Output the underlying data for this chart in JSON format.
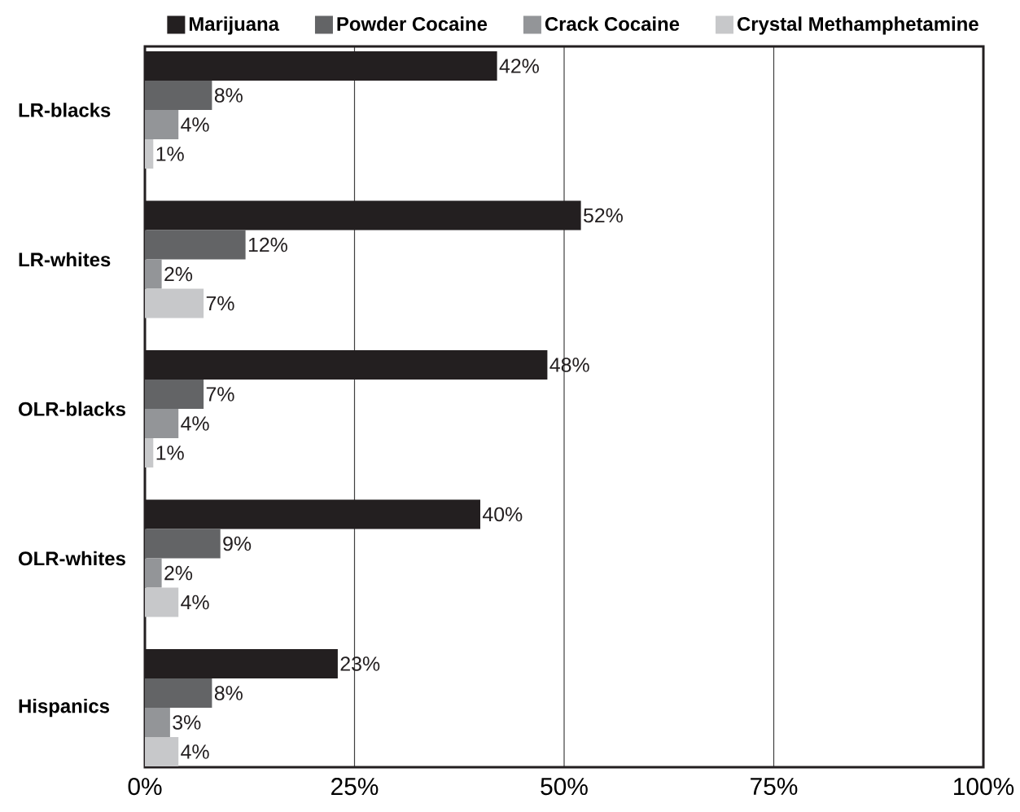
{
  "chart_data": {
    "type": "bar",
    "orientation": "horizontal",
    "categories": [
      "LR-blacks",
      "LR-whites",
      "OLR-blacks",
      "OLR-whites",
      "Hispanics"
    ],
    "series": [
      {
        "name": "Marijuana",
        "color": "#231f20",
        "values": [
          42,
          52,
          48,
          40,
          23
        ],
        "value_labels": [
          "42%",
          "52%",
          "48%",
          "40%",
          "23%"
        ]
      },
      {
        "name": "Powder Cocaine",
        "color": "#636466",
        "values": [
          8,
          12,
          7,
          9,
          8
        ],
        "value_labels": [
          "8%",
          "12%",
          "7%",
          "9%",
          "8%"
        ]
      },
      {
        "name": "Crack Cocaine",
        "color": "#939598",
        "values": [
          4,
          2,
          4,
          2,
          3
        ],
        "value_labels": [
          "4%",
          "2%",
          "4%",
          "2%",
          "3%"
        ]
      },
      {
        "name": "Crystal Methamphetamine",
        "color": "#c7c8ca",
        "values": [
          1,
          7,
          1,
          4,
          4
        ],
        "value_labels": [
          "1%",
          "7%",
          "1%",
          "4%",
          "4%"
        ]
      }
    ],
    "xlim": [
      0,
      100
    ],
    "xticks": [
      {
        "value": 0,
        "label": "0%"
      },
      {
        "value": 25,
        "label": "25%"
      },
      {
        "value": 50,
        "label": "50%"
      },
      {
        "value": 75,
        "label": "75%"
      },
      {
        "value": 100,
        "label": "100%"
      }
    ],
    "grid": "x",
    "legend": "top"
  }
}
